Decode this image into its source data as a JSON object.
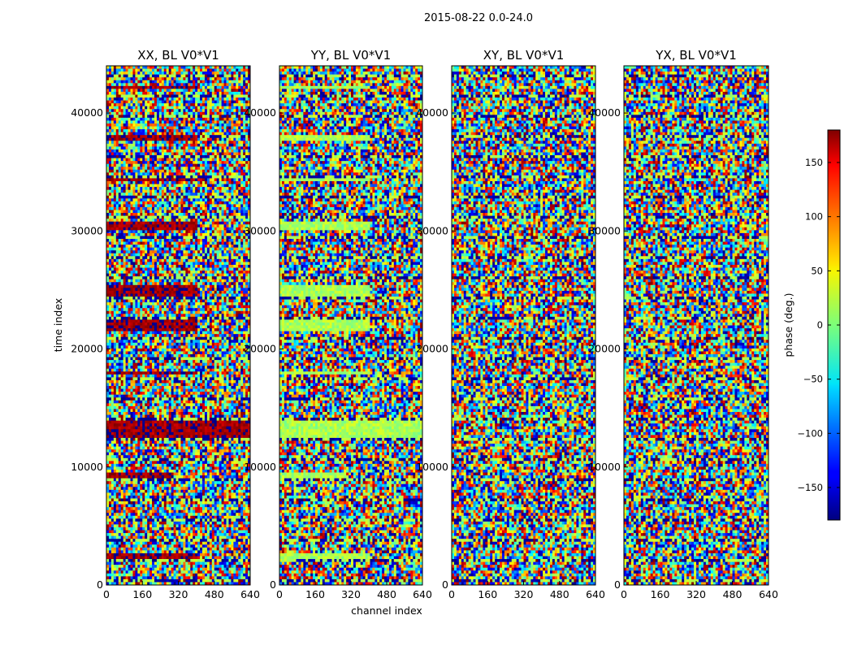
{
  "chart_data": {
    "type": "heatmap",
    "title": "2015-08-22 0.0-24.0",
    "xlabel": "channel index",
    "ylabel": "time index",
    "xlim": [
      0,
      640
    ],
    "ylim": [
      0,
      44000
    ],
    "x_ticks": [
      0,
      160,
      320,
      480,
      640
    ],
    "y_ticks": [
      0,
      10000,
      20000,
      30000,
      40000
    ],
    "panels": [
      {
        "title": "XX, BL V0*V1",
        "bias": 170,
        "strong": 1.0
      },
      {
        "title": "YY, BL V0*V1",
        "bias": 15,
        "strong": 1.0
      },
      {
        "title": "XY, BL V0*V1",
        "bias": 0,
        "strong": 0.0
      },
      {
        "title": "YX, BL V0*V1",
        "bias": 0,
        "strong": 0.0
      }
    ],
    "banded_rows": [
      {
        "y0": 2200,
        "y1": 2700,
        "x_end": 400
      },
      {
        "y0": 9100,
        "y1": 9500,
        "x_end": 300
      },
      {
        "y0": 12500,
        "y1": 13900,
        "x_end": 640
      },
      {
        "y0": 17800,
        "y1": 18100,
        "x_end": 400
      },
      {
        "y0": 21500,
        "y1": 22600,
        "x_end": 400
      },
      {
        "y0": 24500,
        "y1": 25300,
        "x_end": 400
      },
      {
        "y0": 30000,
        "y1": 30800,
        "x_end": 400
      },
      {
        "y0": 34200,
        "y1": 34500,
        "x_end": 400
      },
      {
        "y0": 37600,
        "y1": 38100,
        "x_end": 400
      },
      {
        "y0": 42000,
        "y1": 42300,
        "x_end": 400
      }
    ],
    "colorbar": {
      "label": "phase (deg.)",
      "min": -180,
      "max": 180,
      "colormap": "jet",
      "ticks": [
        -150,
        -100,
        -50,
        0,
        50,
        100,
        150
      ],
      "tick_labels": [
        "−150",
        "−100",
        "−50",
        "0",
        "50",
        "100",
        "150"
      ]
    }
  }
}
